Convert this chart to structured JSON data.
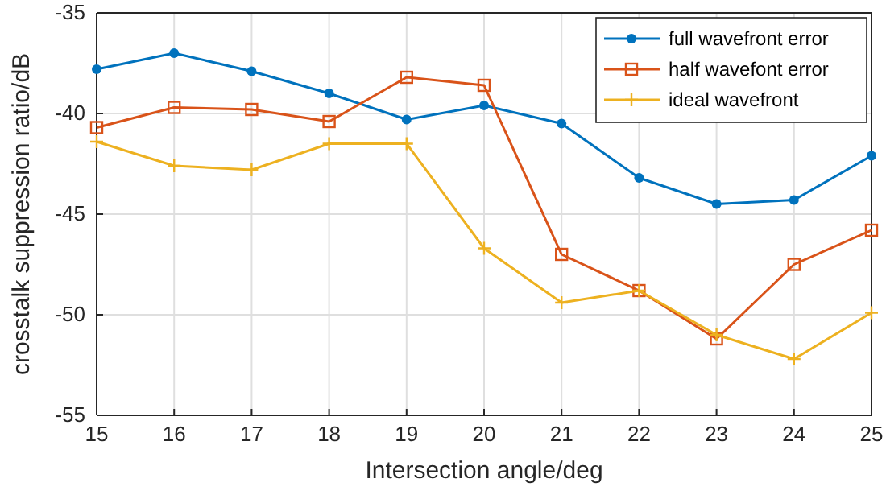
{
  "chart_data": {
    "type": "line",
    "xlabel": "Intersection angle/deg",
    "ylabel": "crosstalk suppression ratio/dB",
    "x": [
      15,
      16,
      17,
      18,
      19,
      20,
      21,
      22,
      23,
      24,
      25
    ],
    "xlim": [
      15,
      25
    ],
    "xticks": [
      15,
      16,
      17,
      18,
      19,
      20,
      21,
      22,
      23,
      24,
      25
    ],
    "ylim": [
      -55,
      -35
    ],
    "yticks": [
      -55,
      -50,
      -45,
      -40,
      -35
    ],
    "grid": true,
    "legend": "top right",
    "series": [
      {
        "name": "full wavefront error",
        "color": "#0072bd",
        "marker": "circle",
        "values": [
          -37.8,
          -37.0,
          -37.9,
          -39.0,
          -40.3,
          -39.6,
          -40.5,
          -43.2,
          -44.5,
          -44.3,
          -42.1
        ]
      },
      {
        "name": "half wavefont error",
        "color": "#d95319",
        "marker": "square",
        "values": [
          -40.7,
          -39.7,
          -39.8,
          -40.4,
          -38.2,
          -38.6,
          -47.0,
          -48.8,
          -51.2,
          -47.5,
          -45.8
        ]
      },
      {
        "name": "ideal wavefront",
        "color": "#edb120",
        "marker": "cross",
        "values": [
          -41.4,
          -42.6,
          -42.8,
          -41.5,
          -41.5,
          -46.7,
          -49.4,
          -48.8,
          -51.0,
          -52.2,
          -49.9
        ]
      }
    ]
  }
}
